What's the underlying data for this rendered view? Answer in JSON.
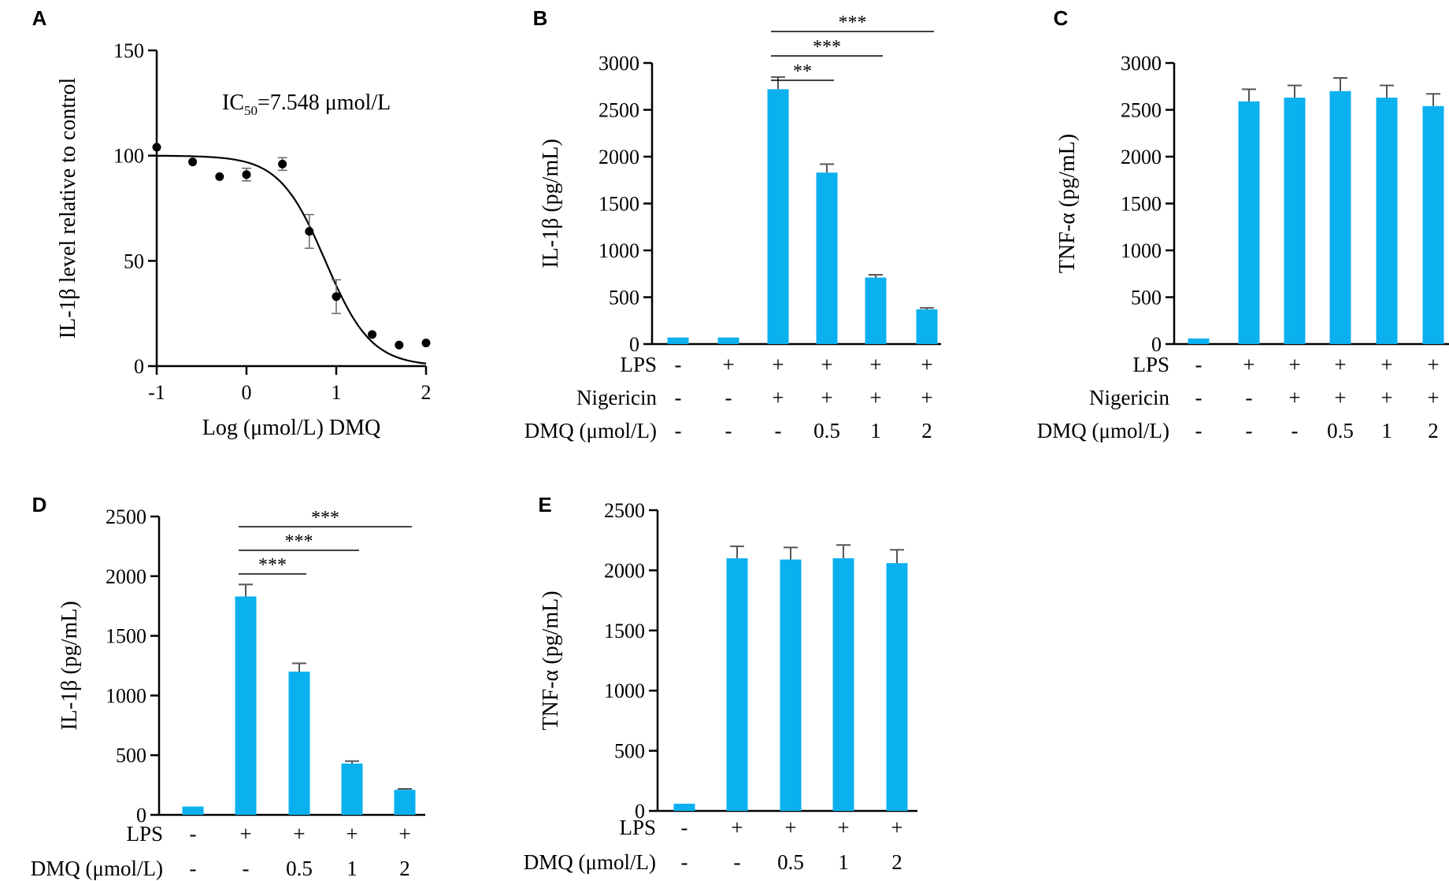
{
  "chart_data": [
    {
      "id": "A",
      "type": "scatter",
      "label": "A",
      "ylabel": "IL-1β level relative to control",
      "xlabel": "Log (μmol/L) DMQ",
      "xlim": [
        -1,
        2
      ],
      "ylim": [
        0,
        150
      ],
      "xticks": [
        -1,
        0,
        1,
        2
      ],
      "yticks": [
        0,
        50,
        100,
        150
      ],
      "annotation": {
        "main": "IC",
        "sub": "50",
        "rest": "=7.548 μmol/L"
      },
      "points": [
        {
          "x": -1.0,
          "y": 104
        },
        {
          "x": -0.6,
          "y": 97
        },
        {
          "x": -0.3,
          "y": 90
        },
        {
          "x": 0.0,
          "y": 91,
          "err": 3
        },
        {
          "x": 0.4,
          "y": 96,
          "err": 3
        },
        {
          "x": 0.7,
          "y": 64,
          "err": 8
        },
        {
          "x": 1.0,
          "y": 33,
          "err": 8
        },
        {
          "x": 1.4,
          "y": 15
        },
        {
          "x": 1.7,
          "y": 10
        },
        {
          "x": 2.0,
          "y": 11
        }
      ],
      "fit": {
        "top": 100,
        "bottom": 0,
        "logIC50": 0.878,
        "hill": 1.7
      },
      "grid": false
    },
    {
      "id": "B",
      "type": "bar",
      "label": "B",
      "ylabel": "IL-1β (pg/mL)",
      "ylim": [
        0,
        3000
      ],
      "yticks": [
        0,
        500,
        1000,
        1500,
        2000,
        2500,
        3000
      ],
      "values": [
        70,
        70,
        2720,
        1830,
        710,
        370
      ],
      "errors": [
        0,
        0,
        130,
        90,
        30,
        15
      ],
      "bar_color": "#0bb0ef",
      "conditions": [
        {
          "name": "LPS",
          "values": [
            "-",
            "+",
            "+",
            "+",
            "+",
            "+"
          ]
        },
        {
          "name": "Nigericin",
          "values": [
            "-",
            "-",
            "+",
            "+",
            "+",
            "+"
          ]
        },
        {
          "name": "DMQ (μmol/L)",
          "values": [
            "-",
            "-",
            "-",
            "0.5",
            "1",
            "2"
          ]
        }
      ],
      "significance": [
        {
          "from": 2,
          "to": 3,
          "label": "**"
        },
        {
          "from": 2,
          "to": 4,
          "label": "***"
        },
        {
          "from": 2,
          "to": 5,
          "label": "***"
        }
      ],
      "grid": false
    },
    {
      "id": "C",
      "type": "bar",
      "label": "C",
      "ylabel": "TNF-α (pg/mL)",
      "ylim": [
        0,
        3000
      ],
      "yticks": [
        0,
        500,
        1000,
        1500,
        2000,
        2500,
        3000
      ],
      "values": [
        60,
        2590,
        2630,
        2700,
        2630,
        2540
      ],
      "errors": [
        0,
        130,
        130,
        140,
        130,
        130
      ],
      "bar_color": "#0bb0ef",
      "conditions": [
        {
          "name": "LPS",
          "values": [
            "-",
            "+",
            "+",
            "+",
            "+",
            "+"
          ]
        },
        {
          "name": "Nigericin",
          "values": [
            "-",
            "-",
            "+",
            "+",
            "+",
            "+"
          ]
        },
        {
          "name": "DMQ (μmol/L)",
          "values": [
            "-",
            "-",
            "-",
            "0.5",
            "1",
            "2"
          ]
        }
      ],
      "significance": [],
      "grid": false
    },
    {
      "id": "D",
      "type": "bar",
      "label": "D",
      "ylabel": "IL-1β (pg/mL)",
      "ylim": [
        0,
        2500
      ],
      "yticks": [
        0,
        500,
        1000,
        1500,
        2000,
        2500
      ],
      "values": [
        70,
        1830,
        1200,
        430,
        210
      ],
      "errors": [
        0,
        100,
        70,
        20,
        8
      ],
      "bar_color": "#0bb0ef",
      "conditions": [
        {
          "name": "LPS",
          "values": [
            "-",
            "+",
            "+",
            "+",
            "+"
          ]
        },
        {
          "name": "DMQ (μmol/L)",
          "values": [
            "-",
            "-",
            "0.5",
            "1",
            "2"
          ]
        }
      ],
      "significance": [
        {
          "from": 1,
          "to": 2,
          "label": "***"
        },
        {
          "from": 1,
          "to": 3,
          "label": "***"
        },
        {
          "from": 1,
          "to": 4,
          "label": "***"
        }
      ],
      "grid": false
    },
    {
      "id": "E",
      "type": "bar",
      "label": "E",
      "ylabel": "TNF-α (pg/mL)",
      "ylim": [
        0,
        2500
      ],
      "yticks": [
        0,
        500,
        1000,
        1500,
        2000,
        2500
      ],
      "values": [
        60,
        2100,
        2090,
        2100,
        2060
      ],
      "errors": [
        0,
        100,
        100,
        110,
        110
      ],
      "bar_color": "#0bb0ef",
      "conditions": [
        {
          "name": "LPS",
          "values": [
            "-",
            "+",
            "+",
            "+",
            "+"
          ]
        },
        {
          "name": "DMQ (μmol/L)",
          "values": [
            "-",
            "-",
            "0.5",
            "1",
            "2"
          ]
        }
      ],
      "significance": [],
      "grid": false
    }
  ]
}
